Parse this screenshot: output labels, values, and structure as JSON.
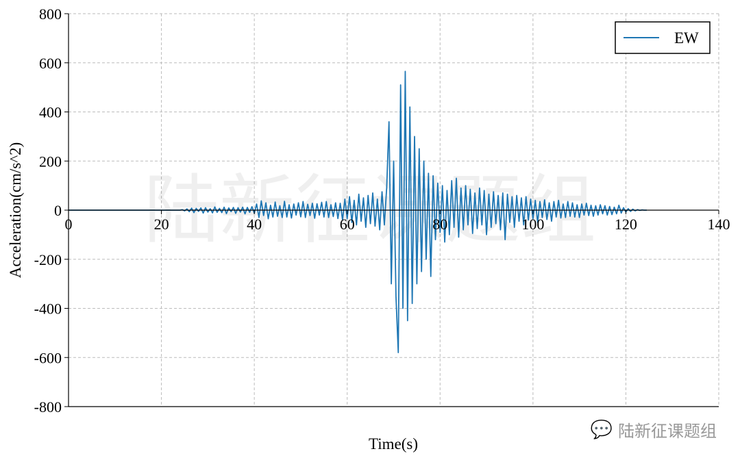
{
  "watermark": {
    "center_text": "陆新征课题组",
    "corner_text": "陆新征课题组",
    "corner_icon": "wechat-icon"
  },
  "chart_data": {
    "type": "line",
    "title": "",
    "xlabel": "Time(s)",
    "ylabel": "Acceleration(cm/s^2)",
    "xlim": [
      0,
      140
    ],
    "ylim": [
      -800,
      800
    ],
    "xticks": [
      0,
      20,
      40,
      60,
      80,
      100,
      120,
      140
    ],
    "yticks": [
      800,
      600,
      400,
      200,
      0,
      -200,
      -400,
      -600,
      -800
    ],
    "grid": true,
    "grid_style": "dashed",
    "legend_position": "top-right",
    "color": "#1f77b4",
    "series": [
      {
        "name": "EW",
        "x_start": 24,
        "x_step": 0.5,
        "values": [
          0,
          2,
          -3,
          5,
          -6,
          8,
          -10,
          7,
          -5,
          9,
          -12,
          10,
          -8,
          6,
          -11,
          13,
          -9,
          7,
          -10,
          12,
          -14,
          9,
          -6,
          11,
          -13,
          10,
          -8,
          12,
          -15,
          11,
          -9,
          14,
          -12,
          25,
          -30,
          38,
          -22,
          30,
          -35,
          20,
          -28,
          33,
          -25,
          18,
          -30,
          36,
          -28,
          22,
          -32,
          25,
          -20,
          30,
          -27,
          35,
          -30,
          24,
          -22,
          28,
          -33,
          26,
          -20,
          32,
          -28,
          35,
          -30,
          22,
          -26,
          30,
          -34,
          28,
          -40,
          45,
          -35,
          55,
          -50,
          40,
          -60,
          65,
          -45,
          50,
          -70,
          60,
          -55,
          70,
          -65,
          45,
          -80,
          75,
          -60,
          90,
          360,
          -300,
          200,
          -350,
          -580,
          510,
          -400,
          565,
          -450,
          420,
          -380,
          300,
          -300,
          250,
          -250,
          200,
          -200,
          150,
          -270,
          140,
          -120,
          110,
          -90,
          100,
          -130,
          80,
          -100,
          120,
          -70,
          130,
          -110,
          90,
          -80,
          100,
          -60,
          85,
          -95,
          70,
          -75,
          90,
          -60,
          80,
          -100,
          65,
          -70,
          75,
          -55,
          60,
          -80,
          70,
          -120,
          65,
          -50,
          55,
          -70,
          60,
          -45,
          50,
          -60,
          55,
          -40,
          45,
          -35,
          40,
          -50,
          35,
          -30,
          42,
          -38,
          30,
          -45,
          35,
          -28,
          40,
          -32,
          25,
          -30,
          35,
          -25,
          30,
          -28,
          22,
          -30,
          25,
          -20,
          28,
          -22,
          20,
          -25,
          18,
          -20,
          22,
          -15,
          18,
          -20,
          15,
          -18,
          12,
          -15,
          20,
          -12,
          10,
          -8,
          6,
          -5,
          4,
          -3,
          2,
          -1,
          1,
          0,
          0
        ]
      }
    ]
  }
}
